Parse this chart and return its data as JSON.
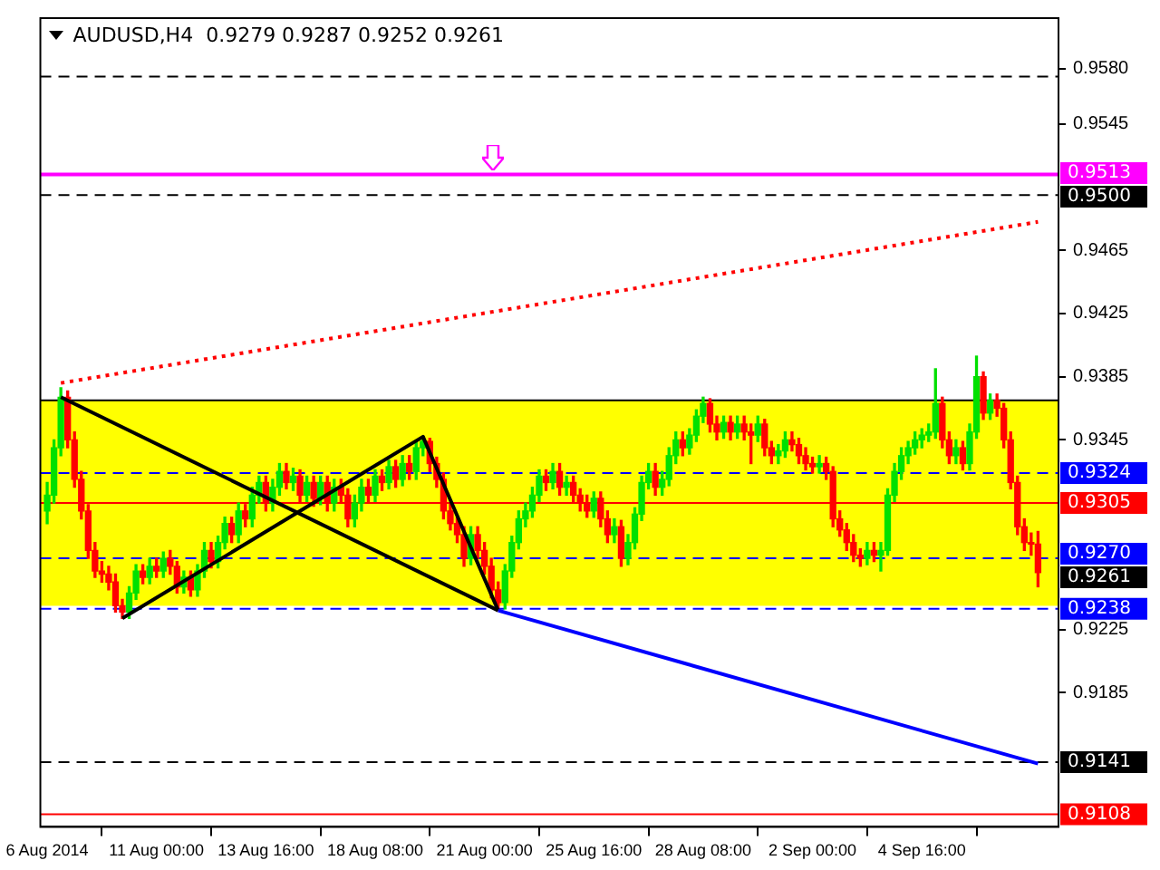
{
  "chart_data": {
    "type": "candlestick",
    "title": "AUDUSD,H4  0.9279 0.9287 0.9252 0.9261",
    "categories": [
      "6 Aug 2014",
      null,
      null,
      null,
      null,
      null,
      null,
      null,
      null,
      null,
      null,
      null,
      null,
      null,
      null,
      null,
      "11 Aug 00:00",
      null,
      null,
      null,
      null,
      null,
      null,
      null,
      null,
      null,
      null,
      null,
      null,
      null,
      null,
      null,
      "13 Aug 16:00",
      null,
      null,
      null,
      null,
      null,
      null,
      null,
      null,
      null,
      null,
      null,
      null,
      null,
      null,
      null,
      "18 Aug 08:00",
      null,
      null,
      null,
      null,
      null,
      null,
      null,
      null,
      null,
      null,
      null,
      null,
      null,
      null,
      null,
      "21 Aug 00:00",
      null,
      null,
      null,
      null,
      null,
      null,
      null,
      null,
      null,
      null,
      null,
      null,
      null,
      null,
      null,
      "25 Aug 16:00",
      null,
      null,
      null,
      null,
      null,
      null,
      null,
      null,
      null,
      null,
      null,
      null,
      null,
      null,
      null,
      "28 Aug 08:00",
      null,
      null,
      null,
      null,
      null,
      null,
      null,
      null,
      null,
      null,
      null,
      null,
      null,
      null,
      null,
      "2 Sep 00:00",
      null,
      null,
      null,
      null,
      null,
      null,
      null,
      null,
      null,
      null,
      null,
      null,
      null,
      null,
      null,
      "4 Sep 16:00",
      null,
      null,
      null,
      null,
      null,
      null,
      null,
      null,
      null,
      null,
      null,
      null,
      null,
      null,
      null,
      null,
      null
    ],
    "ohlc": [
      [
        0.93,
        0.9318,
        0.9292,
        0.931
      ],
      [
        0.931,
        0.9345,
        0.9305,
        0.934
      ],
      [
        0.934,
        0.9378,
        0.9335,
        0.9372
      ],
      [
        0.9372,
        0.9376,
        0.934,
        0.9345
      ],
      [
        0.9345,
        0.935,
        0.9315,
        0.932
      ],
      [
        0.932,
        0.9325,
        0.9295,
        0.93
      ],
      [
        0.93,
        0.9304,
        0.927,
        0.9275
      ],
      [
        0.9275,
        0.928,
        0.9258,
        0.9262
      ],
      [
        0.9262,
        0.9268,
        0.9255,
        0.926
      ],
      [
        0.926,
        0.9265,
        0.925,
        0.9255
      ],
      [
        0.9255,
        0.926,
        0.9236,
        0.924
      ],
      [
        0.924,
        0.9244,
        0.9232,
        0.9236
      ],
      [
        0.9236,
        0.9252,
        0.9232,
        0.9248
      ],
      [
        0.9248,
        0.9266,
        0.9244,
        0.9262
      ],
      [
        0.9262,
        0.9266,
        0.9254,
        0.9258
      ],
      [
        0.9258,
        0.927,
        0.9254,
        0.9265
      ],
      [
        0.9265,
        0.927,
        0.9258,
        0.9262
      ],
      [
        0.9262,
        0.9274,
        0.9258,
        0.927
      ],
      [
        0.927,
        0.9275,
        0.926,
        0.9265
      ],
      [
        0.9265,
        0.9268,
        0.9248,
        0.9252
      ],
      [
        0.9252,
        0.9262,
        0.9248,
        0.9258
      ],
      [
        0.9258,
        0.9262,
        0.9246,
        0.925
      ],
      [
        0.925,
        0.9266,
        0.9246,
        0.9262
      ],
      [
        0.9262,
        0.928,
        0.9258,
        0.9275
      ],
      [
        0.9275,
        0.928,
        0.9264,
        0.9268
      ],
      [
        0.9268,
        0.9284,
        0.9264,
        0.928
      ],
      [
        0.928,
        0.9296,
        0.9276,
        0.9292
      ],
      [
        0.9292,
        0.9296,
        0.928,
        0.9285
      ],
      [
        0.9285,
        0.9305,
        0.928,
        0.93
      ],
      [
        0.93,
        0.9304,
        0.929,
        0.9295
      ],
      [
        0.9295,
        0.9315,
        0.929,
        0.931
      ],
      [
        0.931,
        0.9322,
        0.9305,
        0.9318
      ],
      [
        0.9318,
        0.9322,
        0.93,
        0.9305
      ],
      [
        0.9305,
        0.932,
        0.93,
        0.9315
      ],
      [
        0.9315,
        0.933,
        0.931,
        0.9325
      ],
      [
        0.9325,
        0.933,
        0.9314,
        0.9318
      ],
      [
        0.9318,
        0.9327,
        0.9313,
        0.9322
      ],
      [
        0.9322,
        0.9326,
        0.9305,
        0.931
      ],
      [
        0.931,
        0.9322,
        0.9306,
        0.9318
      ],
      [
        0.9318,
        0.9322,
        0.9303,
        0.9308
      ],
      [
        0.9308,
        0.9322,
        0.9304,
        0.9318
      ],
      [
        0.9318,
        0.9322,
        0.93,
        0.9305
      ],
      [
        0.9305,
        0.932,
        0.93,
        0.9315
      ],
      [
        0.9315,
        0.932,
        0.9305,
        0.931
      ],
      [
        0.931,
        0.9314,
        0.929,
        0.9295
      ],
      [
        0.9295,
        0.931,
        0.929,
        0.9305
      ],
      [
        0.9305,
        0.932,
        0.93,
        0.9315
      ],
      [
        0.9315,
        0.932,
        0.9305,
        0.931
      ],
      [
        0.931,
        0.9326,
        0.9306,
        0.9322
      ],
      [
        0.9322,
        0.9326,
        0.9313,
        0.9318
      ],
      [
        0.9318,
        0.9332,
        0.9314,
        0.9328
      ],
      [
        0.9328,
        0.9332,
        0.9315,
        0.932
      ],
      [
        0.932,
        0.9335,
        0.9316,
        0.933
      ],
      [
        0.933,
        0.9335,
        0.932,
        0.9325
      ],
      [
        0.9325,
        0.9344,
        0.932,
        0.934
      ],
      [
        0.934,
        0.9347,
        0.9335,
        0.9344
      ],
      [
        0.9344,
        0.9346,
        0.9325,
        0.933
      ],
      [
        0.933,
        0.9334,
        0.9315,
        0.932
      ],
      [
        0.932,
        0.9324,
        0.9295,
        0.93
      ],
      [
        0.93,
        0.9305,
        0.9288,
        0.9292
      ],
      [
        0.9292,
        0.9296,
        0.928,
        0.9285
      ],
      [
        0.9285,
        0.929,
        0.9265,
        0.927
      ],
      [
        0.927,
        0.929,
        0.9266,
        0.9285
      ],
      [
        0.9285,
        0.929,
        0.927,
        0.9275
      ],
      [
        0.9275,
        0.928,
        0.926,
        0.9265
      ],
      [
        0.9265,
        0.927,
        0.9245,
        0.925
      ],
      [
        0.925,
        0.9255,
        0.9237,
        0.9242
      ],
      [
        0.9242,
        0.9266,
        0.9238,
        0.9262
      ],
      [
        0.9262,
        0.9284,
        0.9258,
        0.928
      ],
      [
        0.928,
        0.93,
        0.9276,
        0.9295
      ],
      [
        0.9295,
        0.9305,
        0.929,
        0.93
      ],
      [
        0.93,
        0.9315,
        0.9296,
        0.931
      ],
      [
        0.931,
        0.9326,
        0.9306,
        0.9322
      ],
      [
        0.9322,
        0.9326,
        0.9313,
        0.9318
      ],
      [
        0.9318,
        0.933,
        0.9314,
        0.9325
      ],
      [
        0.9325,
        0.933,
        0.931,
        0.9315
      ],
      [
        0.9315,
        0.9322,
        0.931,
        0.9318
      ],
      [
        0.9318,
        0.9322,
        0.9305,
        0.931
      ],
      [
        0.931,
        0.9314,
        0.93,
        0.9305
      ],
      [
        0.9305,
        0.931,
        0.9296,
        0.93
      ],
      [
        0.93,
        0.9312,
        0.9296,
        0.9308
      ],
      [
        0.9308,
        0.9312,
        0.929,
        0.9295
      ],
      [
        0.9295,
        0.93,
        0.928,
        0.9285
      ],
      [
        0.9285,
        0.9295,
        0.928,
        0.929
      ],
      [
        0.929,
        0.9294,
        0.9265,
        0.927
      ],
      [
        0.927,
        0.9285,
        0.9266,
        0.928
      ],
      [
        0.928,
        0.9302,
        0.9276,
        0.9298
      ],
      [
        0.9298,
        0.9322,
        0.9294,
        0.9318
      ],
      [
        0.9318,
        0.933,
        0.9314,
        0.9325
      ],
      [
        0.9325,
        0.933,
        0.931,
        0.9315
      ],
      [
        0.9315,
        0.9325,
        0.931,
        0.932
      ],
      [
        0.932,
        0.934,
        0.9316,
        0.9335
      ],
      [
        0.9335,
        0.935,
        0.933,
        0.9345
      ],
      [
        0.9345,
        0.935,
        0.9335,
        0.934
      ],
      [
        0.934,
        0.9352,
        0.9336,
        0.9348
      ],
      [
        0.9348,
        0.9364,
        0.9344,
        0.936
      ],
      [
        0.936,
        0.9372,
        0.9356,
        0.9368
      ],
      [
        0.9368,
        0.9371,
        0.935,
        0.9355
      ],
      [
        0.9355,
        0.936,
        0.9345,
        0.935
      ],
      [
        0.935,
        0.936,
        0.9346,
        0.9356
      ],
      [
        0.9356,
        0.936,
        0.9345,
        0.935
      ],
      [
        0.935,
        0.936,
        0.9346,
        0.9355
      ],
      [
        0.9355,
        0.936,
        0.9345,
        0.935
      ],
      [
        0.935,
        0.9355,
        0.933,
        0.9348
      ],
      [
        0.9348,
        0.936,
        0.9344,
        0.9355
      ],
      [
        0.9355,
        0.9358,
        0.9335,
        0.934
      ],
      [
        0.934,
        0.9344,
        0.933,
        0.9335
      ],
      [
        0.9335,
        0.9342,
        0.933,
        0.9338
      ],
      [
        0.9338,
        0.935,
        0.9334,
        0.9345
      ],
      [
        0.9345,
        0.935,
        0.9338,
        0.9342
      ],
      [
        0.9342,
        0.9346,
        0.933,
        0.9335
      ],
      [
        0.9335,
        0.934,
        0.9326,
        0.933
      ],
      [
        0.933,
        0.9334,
        0.9324,
        0.9328
      ],
      [
        0.9328,
        0.9335,
        0.9324,
        0.933
      ],
      [
        0.933,
        0.9334,
        0.932,
        0.9325
      ],
      [
        0.9325,
        0.9328,
        0.929,
        0.9295
      ],
      [
        0.9295,
        0.93,
        0.9284,
        0.9288
      ],
      [
        0.9288,
        0.9292,
        0.9275,
        0.928
      ],
      [
        0.928,
        0.9285,
        0.9268,
        0.9272
      ],
      [
        0.9272,
        0.9276,
        0.9265,
        0.927
      ],
      [
        0.927,
        0.928,
        0.9266,
        0.9275
      ],
      [
        0.9275,
        0.928,
        0.9268,
        0.9272
      ],
      [
        0.9272,
        0.928,
        0.9262,
        0.9275
      ],
      [
        0.9275,
        0.9314,
        0.9272,
        0.931
      ],
      [
        0.931,
        0.933,
        0.9306,
        0.9325
      ],
      [
        0.9325,
        0.934,
        0.932,
        0.9335
      ],
      [
        0.9335,
        0.9344,
        0.933,
        0.934
      ],
      [
        0.934,
        0.935,
        0.9336,
        0.9345
      ],
      [
        0.9345,
        0.9352,
        0.934,
        0.9348
      ],
      [
        0.9348,
        0.9355,
        0.9344,
        0.935
      ],
      [
        0.935,
        0.939,
        0.9346,
        0.9368
      ],
      [
        0.9368,
        0.9372,
        0.934,
        0.9345
      ],
      [
        0.9345,
        0.935,
        0.933,
        0.9335
      ],
      [
        0.9335,
        0.9345,
        0.933,
        0.934
      ],
      [
        0.934,
        0.9344,
        0.9326,
        0.933
      ],
      [
        0.933,
        0.9355,
        0.9326,
        0.935
      ],
      [
        0.935,
        0.9398,
        0.9346,
        0.9385
      ],
      [
        0.9385,
        0.9388,
        0.9358,
        0.9362
      ],
      [
        0.9362,
        0.9374,
        0.9358,
        0.937
      ],
      [
        0.937,
        0.9374,
        0.936,
        0.9365
      ],
      [
        0.9365,
        0.9368,
        0.934,
        0.9345
      ],
      [
        0.9345,
        0.935,
        0.9314,
        0.9318
      ],
      [
        0.9318,
        0.9322,
        0.9285,
        0.929
      ],
      [
        0.929,
        0.9295,
        0.9275,
        0.928
      ],
      [
        0.928,
        0.9286,
        0.9272,
        0.9279
      ],
      [
        0.9279,
        0.9287,
        0.9252,
        0.9261
      ]
    ],
    "colors": [
      "#00e000",
      "#00e000",
      "#00e000",
      "#ff0000",
      "#ff0000",
      "#ff0000",
      "#ff0000",
      "#ff0000",
      "#ff0000",
      "#ff0000",
      "#ff0000",
      "#ff0000",
      "#00e000",
      "#00e000",
      "#ff0000",
      "#00e000",
      "#ff0000",
      "#00e000",
      "#ff0000",
      "#ff0000",
      "#00e000",
      "#ff0000",
      "#00e000",
      "#00e000",
      "#ff0000",
      "#00e000",
      "#00e000",
      "#ff0000",
      "#00e000",
      "#ff0000",
      "#00e000",
      "#00e000",
      "#ff0000",
      "#00e000",
      "#00e000",
      "#ff0000",
      "#00e000",
      "#ff0000",
      "#00e000",
      "#ff0000",
      "#00e000",
      "#ff0000",
      "#00e000",
      "#ff0000",
      "#ff0000",
      "#00e000",
      "#00e000",
      "#ff0000",
      "#00e000",
      "#ff0000",
      "#00e000",
      "#ff0000",
      "#00e000",
      "#ff0000",
      "#00e000",
      "#00e000",
      "#ff0000",
      "#ff0000",
      "#ff0000",
      "#ff0000",
      "#ff0000",
      "#ff0000",
      "#00e000",
      "#ff0000",
      "#ff0000",
      "#ff0000",
      "#ff0000",
      "#00e000",
      "#00e000",
      "#00e000",
      "#00e000",
      "#00e000",
      "#00e000",
      "#ff0000",
      "#00e000",
      "#ff0000",
      "#00e000",
      "#ff0000",
      "#ff0000",
      "#ff0000",
      "#00e000",
      "#ff0000",
      "#ff0000",
      "#00e000",
      "#ff0000",
      "#00e000",
      "#00e000",
      "#00e000",
      "#00e000",
      "#ff0000",
      "#00e000",
      "#00e000",
      "#00e000",
      "#ff0000",
      "#00e000",
      "#00e000",
      "#00e000",
      "#ff0000",
      "#ff0000",
      "#00e000",
      "#ff0000",
      "#00e000",
      "#ff0000",
      "#ff0000",
      "#00e000",
      "#ff0000",
      "#ff0000",
      "#00e000",
      "#00e000",
      "#ff0000",
      "#ff0000",
      "#ff0000",
      "#ff0000",
      "#00e000",
      "#ff0000",
      "#ff0000",
      "#ff0000",
      "#ff0000",
      "#ff0000",
      "#ff0000",
      "#00e000",
      "#ff0000",
      "#00e000",
      "#00e000",
      "#00e000",
      "#00e000",
      "#00e000",
      "#00e000",
      "#00e000",
      "#00e000",
      "#00e000",
      "#ff0000",
      "#ff0000",
      "#00e000",
      "#ff0000",
      "#00e000",
      "#00e000",
      "#ff0000",
      "#00e000",
      "#ff0000",
      "#ff0000",
      "#ff0000",
      "#ff0000",
      "#ff0000",
      "#ff0000",
      "#ff0000"
    ],
    "series": [
      {
        "type": "line",
        "color": "#0000ff",
        "values": [
          null,
          null,
          null,
          null,
          null,
          null,
          null,
          null,
          null,
          null,
          null,
          null,
          null,
          null,
          null,
          null,
          null,
          null,
          null,
          null,
          null,
          null,
          null,
          null,
          null,
          null,
          null,
          null,
          null,
          null,
          null,
          null,
          null,
          null,
          null,
          null,
          null,
          null,
          null,
          null,
          null,
          null,
          null,
          null,
          null,
          null,
          null,
          null,
          null,
          null,
          null,
          null,
          null,
          null,
          null,
          null,
          null,
          null,
          null,
          null,
          null,
          null,
          null,
          null,
          null,
          null,
          0.9237,
          null,
          null,
          null,
          null,
          null,
          null,
          null,
          null,
          null,
          null,
          null,
          null,
          null,
          null,
          null,
          null,
          null,
          null,
          null,
          null,
          null,
          null,
          null,
          null,
          null,
          null,
          null,
          null,
          null,
          null,
          null,
          null,
          null,
          null,
          null,
          null,
          null,
          null,
          null,
          null,
          null,
          null,
          null,
          null,
          null,
          null,
          null,
          null,
          null,
          null,
          null,
          null,
          null,
          null,
          null,
          null,
          null,
          null,
          null,
          null,
          null,
          null,
          null,
          null,
          null,
          null,
          null,
          null,
          null,
          null,
          null,
          null,
          null,
          null,
          null,
          null,
          null,
          null,
          0.914
        ]
      },
      {
        "type": "line",
        "color": "#000000",
        "values": [
          null,
          null,
          0.9372,
          null,
          null,
          null,
          null,
          null,
          null,
          null,
          null,
          null,
          null,
          null,
          null,
          null,
          null,
          null,
          null,
          null,
          null,
          null,
          null,
          null,
          null,
          null,
          null,
          null,
          null,
          null,
          null,
          null,
          null,
          null,
          null,
          null,
          null,
          null,
          null,
          null,
          null,
          null,
          null,
          null,
          null,
          null,
          null,
          null,
          null,
          null,
          null,
          null,
          null,
          null,
          null,
          null,
          null,
          null,
          null,
          null,
          null,
          null,
          null,
          null,
          null,
          null,
          0.9237,
          null,
          null,
          null,
          null,
          null,
          null,
          null,
          null,
          null,
          null,
          null,
          null,
          null,
          null,
          null,
          null,
          null,
          null,
          null,
          null,
          null,
          null,
          null,
          null,
          null,
          null,
          null,
          null,
          null,
          null,
          null,
          null,
          null,
          null,
          null,
          null,
          null,
          null,
          null,
          null,
          null,
          null,
          null,
          null,
          null,
          null,
          null,
          null,
          null,
          null,
          null,
          null,
          null,
          null,
          null,
          null,
          null,
          null,
          null,
          null,
          null,
          null,
          null,
          null,
          null,
          null,
          null,
          null,
          null,
          null,
          null,
          null,
          null,
          null,
          null,
          null,
          null,
          null,
          null
        ]
      },
      {
        "type": "line",
        "color": "#000000",
        "values": [
          null,
          null,
          null,
          null,
          null,
          null,
          null,
          null,
          null,
          null,
          null,
          0.9232,
          null,
          null,
          null,
          null,
          null,
          null,
          null,
          null,
          null,
          null,
          null,
          null,
          null,
          null,
          null,
          null,
          null,
          null,
          null,
          null,
          null,
          null,
          null,
          null,
          null,
          null,
          null,
          null,
          null,
          null,
          null,
          null,
          null,
          null,
          null,
          null,
          null,
          null,
          null,
          null,
          null,
          null,
          null,
          0.9347,
          null,
          null,
          null,
          null,
          null,
          null,
          null,
          null,
          null,
          null,
          0.9237,
          null,
          null,
          null,
          null,
          null,
          null,
          null,
          null,
          null,
          null,
          null,
          null,
          null,
          null,
          null,
          null,
          null,
          null,
          null,
          null,
          null,
          null,
          null,
          null,
          null,
          null,
          null,
          null,
          null,
          null,
          null,
          null,
          null,
          null,
          null,
          null,
          null,
          null,
          null,
          null,
          null,
          null,
          null,
          null,
          null,
          null,
          null,
          null,
          null,
          null,
          null,
          null,
          null,
          null,
          null,
          null,
          null,
          null,
          null,
          null,
          null,
          null,
          null,
          null,
          null,
          null,
          null,
          null,
          null,
          null,
          null,
          null,
          null,
          null,
          null,
          null,
          null,
          null,
          null
        ]
      },
      {
        "type": "line",
        "color": "#ff0000",
        "line_style": "dotted",
        "values": [
          null,
          null,
          0.9381,
          null,
          null,
          null,
          null,
          null,
          null,
          null,
          null,
          null,
          null,
          null,
          null,
          null,
          null,
          null,
          null,
          null,
          null,
          null,
          null,
          null,
          null,
          null,
          null,
          null,
          null,
          null,
          null,
          null,
          null,
          null,
          null,
          null,
          null,
          null,
          null,
          null,
          null,
          null,
          null,
          null,
          null,
          null,
          null,
          null,
          null,
          null,
          null,
          null,
          null,
          null,
          null,
          null,
          null,
          null,
          null,
          null,
          null,
          null,
          null,
          null,
          null,
          null,
          null,
          null,
          null,
          null,
          null,
          null,
          null,
          null,
          null,
          null,
          null,
          null,
          null,
          null,
          null,
          null,
          null,
          null,
          null,
          null,
          null,
          null,
          null,
          null,
          null,
          null,
          null,
          null,
          null,
          null,
          null,
          null,
          null,
          null,
          null,
          null,
          null,
          null,
          null,
          null,
          null,
          null,
          null,
          null,
          null,
          null,
          null,
          null,
          null,
          null,
          null,
          null,
          null,
          null,
          null,
          null,
          null,
          null,
          null,
          null,
          null,
          null,
          null,
          null,
          null,
          null,
          null,
          null,
          null,
          null,
          null,
          null,
          null,
          null,
          null,
          null,
          null,
          null,
          null,
          0.9483
        ]
      }
    ],
    "ylim": [
      0.91,
      0.9612
    ],
    "yticks": [
      {
        "value": 0.958,
        "label": "0.9580"
      },
      {
        "value": 0.9545,
        "label": "0.9545"
      },
      {
        "value": 0.9465,
        "label": "0.9465"
      },
      {
        "value": 0.9425,
        "label": "0.9425"
      },
      {
        "value": 0.9385,
        "label": "0.9385"
      },
      {
        "value": 0.9345,
        "label": "0.9345"
      },
      {
        "value": 0.9225,
        "label": "0.9225"
      },
      {
        "value": 0.9185,
        "label": "0.9185"
      }
    ],
    "bands": [
      {
        "axis": "y",
        "from": 0.924,
        "to": 0.937,
        "color": "#ffff00"
      }
    ],
    "ref_lines": [
      {
        "axis": "y",
        "value": 0.9575,
        "color": "#000000",
        "line_style": "dashed"
      },
      {
        "axis": "y",
        "value": 0.9513,
        "label": "0.9513",
        "color": "#ff00ff",
        "line_style": "solid"
      },
      {
        "axis": "y",
        "value": 0.95,
        "label": "0.9500",
        "color": "#000000",
        "line_style": "dashed"
      },
      {
        "axis": "y",
        "value": 0.937,
        "color": "#000000",
        "line_style": "solid"
      },
      {
        "axis": "y",
        "value": 0.9324,
        "label": "0.9324",
        "color": "#0000ff",
        "line_style": "dashed"
      },
      {
        "axis": "y",
        "value": 0.9305,
        "label": "0.9305",
        "color": "#ff0000",
        "line_style": "solid"
      },
      {
        "axis": "y",
        "value": 0.927,
        "label": "0.9270",
        "color": "#0000ff",
        "line_style": "dashed"
      },
      {
        "axis": "y",
        "value": 0.9238,
        "label": "0.9238",
        "color": "#0000ff",
        "line_style": "dashed"
      },
      {
        "axis": "y",
        "value": 0.9141,
        "label": "0.9141",
        "color": "#000000",
        "line_style": "dashed"
      },
      {
        "axis": "y",
        "value": 0.9108,
        "label": "0.9108",
        "color": "#ff0000",
        "line_style": "solid"
      }
    ],
    "annotations": [
      "0.9261"
    ],
    "grid": false,
    "legend": false
  }
}
